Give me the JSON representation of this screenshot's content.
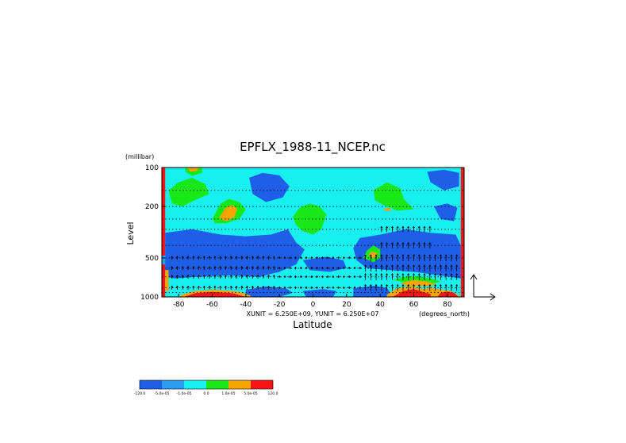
{
  "chart_data": {
    "type": "heatmap",
    "title": "EPFLX_1988-11_NCEP.nc",
    "xlabel": "Latitude",
    "ylabel": "Level",
    "y_units": "(millibar)",
    "x_units": "(degrees_north)",
    "unit_note": "XUNIT = 6.250E+09, YUNIT = 6.250E+07",
    "xlim": [
      -90,
      90
    ],
    "ylim": [
      1000,
      100
    ],
    "y_scale": "log",
    "x_ticks": [
      {
        "value": -80,
        "label": "-80"
      },
      {
        "value": -60,
        "label": "-60"
      },
      {
        "value": -40,
        "label": "-40"
      },
      {
        "value": -20,
        "label": "-20"
      },
      {
        "value": 0,
        "label": "0"
      },
      {
        "value": 20,
        "label": "20"
      },
      {
        "value": 40,
        "label": "40"
      },
      {
        "value": 60,
        "label": "60"
      },
      {
        "value": 80,
        "label": "80"
      }
    ],
    "y_ticks": [
      {
        "value": 100,
        "label": "100"
      },
      {
        "value": 200,
        "label": "200"
      },
      {
        "value": 500,
        "label": "500"
      },
      {
        "value": 1000,
        "label": "1000"
      }
    ],
    "levels_dotted": [
      100,
      150,
      200,
      250,
      300,
      400,
      500,
      600,
      700,
      850,
      925,
      1000
    ],
    "colorbar": {
      "colors": [
        "#1f5fe8",
        "#2b9cf2",
        "#18f0f0",
        "#18e818",
        "#f8a400",
        "#f81414"
      ],
      "labels": [
        "-120.0",
        "-5.0e-05",
        "-1.0e-05",
        "0.0",
        "1.0e-05",
        "5.0e-05",
        "120.0"
      ]
    },
    "regions": [
      {
        "name": "left-edge-red",
        "color": "#f81414",
        "pts": [
          [
            -90,
            100
          ],
          [
            -88,
            100
          ],
          [
            -88,
            1000
          ],
          [
            -90,
            1000
          ]
        ]
      },
      {
        "name": "right-edge-red",
        "color": "#f81414",
        "pts": [
          [
            88,
            100
          ],
          [
            90,
            100
          ],
          [
            90,
            1000
          ],
          [
            88,
            1000
          ]
        ]
      },
      {
        "name": "lower-tropo-blue-south",
        "color": "#1f5fe8",
        "pts": [
          [
            -88,
            320
          ],
          [
            -72,
            300
          ],
          [
            -55,
            330
          ],
          [
            -40,
            340
          ],
          [
            -25,
            330
          ],
          [
            -15,
            300
          ],
          [
            -10,
            380
          ],
          [
            -5,
            430
          ],
          [
            -10,
            560
          ],
          [
            -20,
            640
          ],
          [
            -32,
            700
          ],
          [
            -50,
            680
          ],
          [
            -70,
            700
          ],
          [
            -82,
            720
          ],
          [
            -88,
            700
          ]
        ]
      },
      {
        "name": "lower-tropo-blue-north",
        "color": "#1f5fe8",
        "pts": [
          [
            28,
            350
          ],
          [
            40,
            330
          ],
          [
            55,
            300
          ],
          [
            70,
            320
          ],
          [
            85,
            330
          ],
          [
            88,
            400
          ],
          [
            88,
            720
          ],
          [
            75,
            680
          ],
          [
            60,
            640
          ],
          [
            45,
            620
          ],
          [
            32,
            600
          ],
          [
            26,
            520
          ],
          [
            24,
            420
          ]
        ]
      },
      {
        "name": "lower-tropo-blue-middle",
        "color": "#1f5fe8",
        "pts": [
          [
            -6,
            520
          ],
          [
            8,
            490
          ],
          [
            18,
            520
          ],
          [
            20,
            600
          ],
          [
            10,
            640
          ],
          [
            -2,
            620
          ]
        ]
      },
      {
        "name": "upper-blue-south",
        "color": "#1f5fe8",
        "pts": [
          [
            -38,
            120
          ],
          [
            -30,
            110
          ],
          [
            -20,
            115
          ],
          [
            -14,
            140
          ],
          [
            -18,
            170
          ],
          [
            -28,
            185
          ],
          [
            -36,
            160
          ]
        ]
      },
      {
        "name": "upper-blue-north-east",
        "color": "#1f5fe8",
        "pts": [
          [
            68,
            108
          ],
          [
            78,
            104
          ],
          [
            87,
            110
          ],
          [
            87,
            140
          ],
          [
            78,
            150
          ],
          [
            70,
            130
          ]
        ]
      },
      {
        "name": "upper-blue-right",
        "color": "#1f5fe8",
        "pts": [
          [
            72,
            200
          ],
          [
            80,
            190
          ],
          [
            86,
            205
          ],
          [
            84,
            260
          ],
          [
            76,
            250
          ]
        ]
      },
      {
        "name": "surface-blue-south",
        "color": "#1f5fe8",
        "pts": [
          [
            -40,
            880
          ],
          [
            -28,
            830
          ],
          [
            -16,
            860
          ],
          [
            -12,
            930
          ],
          [
            -20,
            1000
          ],
          [
            -40,
            1000
          ]
        ]
      },
      {
        "name": "surface-blue-equator",
        "color": "#1f5fe8",
        "pts": [
          [
            -6,
            900
          ],
          [
            6,
            870
          ],
          [
            14,
            900
          ],
          [
            12,
            1000
          ],
          [
            -4,
            1000
          ]
        ]
      },
      {
        "name": "surface-blue-north",
        "color": "#1f5fe8",
        "pts": [
          [
            24,
            860
          ],
          [
            36,
            820
          ],
          [
            44,
            850
          ],
          [
            46,
            930
          ],
          [
            44,
            1000
          ],
          [
            24,
            1000
          ]
        ]
      },
      {
        "name": "green-upper-south",
        "color": "#18e818",
        "pts": [
          [
            -86,
            150
          ],
          [
            -80,
            130
          ],
          [
            -72,
            120
          ],
          [
            -64,
            135
          ],
          [
            -62,
            160
          ],
          [
            -70,
            178
          ],
          [
            -78,
            200
          ],
          [
            -84,
            190
          ]
        ]
      },
      {
        "name": "green-mid-south",
        "color": "#18e818",
        "pts": [
          [
            -60,
            250
          ],
          [
            -55,
            190
          ],
          [
            -50,
            175
          ],
          [
            -44,
            185
          ],
          [
            -40,
            210
          ],
          [
            -44,
            250
          ],
          [
            -52,
            270
          ],
          [
            -58,
            270
          ]
        ]
      },
      {
        "name": "green-equator",
        "color": "#18e818",
        "pts": [
          [
            -12,
            240
          ],
          [
            -8,
            205
          ],
          [
            -2,
            190
          ],
          [
            4,
            200
          ],
          [
            8,
            230
          ],
          [
            5,
            300
          ],
          [
            0,
            330
          ],
          [
            -6,
            310
          ],
          [
            -10,
            280
          ]
        ]
      },
      {
        "name": "green-north-upper",
        "color": "#18e818",
        "pts": [
          [
            36,
            150
          ],
          [
            44,
            130
          ],
          [
            52,
            145
          ],
          [
            54,
            175
          ],
          [
            60,
            210
          ],
          [
            50,
            215
          ],
          [
            42,
            195
          ],
          [
            37,
            180
          ]
        ]
      },
      {
        "name": "green-north-mid",
        "color": "#18e818",
        "pts": [
          [
            30,
            500
          ],
          [
            32,
            440
          ],
          [
            36,
            400
          ],
          [
            40,
            430
          ],
          [
            40,
            500
          ],
          [
            36,
            540
          ]
        ]
      },
      {
        "name": "green-north-lower",
        "color": "#18e818",
        "pts": [
          [
            48,
            740
          ],
          [
            54,
            700
          ],
          [
            62,
            690
          ],
          [
            70,
            720
          ],
          [
            76,
            760
          ],
          [
            70,
            800
          ],
          [
            58,
            790
          ]
        ]
      },
      {
        "name": "green-top-center",
        "color": "#18e818",
        "pts": [
          [
            -76,
            100
          ],
          [
            -66,
            100
          ],
          [
            -66,
            110
          ],
          [
            -72,
            116
          ],
          [
            -76,
            108
          ]
        ]
      },
      {
        "name": "orange-upper-south",
        "color": "#f8a400",
        "pts": [
          [
            -56,
            245
          ],
          [
            -52,
            205
          ],
          [
            -48,
            195
          ],
          [
            -45,
            210
          ],
          [
            -47,
            245
          ],
          [
            -52,
            260
          ]
        ]
      },
      {
        "name": "orange-top-south",
        "color": "#f8a400",
        "pts": [
          [
            -75,
            100
          ],
          [
            -68,
            100
          ],
          [
            -69,
            106
          ],
          [
            -73,
            108
          ]
        ]
      },
      {
        "name": "orange-north-mid",
        "color": "#f8a400",
        "pts": [
          [
            33,
            470
          ],
          [
            35,
            445
          ],
          [
            38,
            455
          ],
          [
            38,
            490
          ],
          [
            35,
            505
          ]
        ]
      },
      {
        "name": "orange-north-upper",
        "color": "#f8a400",
        "pts": [
          [
            42,
            210
          ],
          [
            45,
            205
          ],
          [
            47,
            212
          ],
          [
            44,
            218
          ]
        ]
      },
      {
        "name": "orange-north-lower",
        "color": "#f8a400",
        "pts": [
          [
            52,
            780
          ],
          [
            60,
            740
          ],
          [
            68,
            760
          ],
          [
            74,
            800
          ],
          [
            66,
            830
          ],
          [
            56,
            820
          ]
        ]
      },
      {
        "name": "orange-surface-south",
        "color": "#f8a400",
        "pts": [
          [
            -78,
            960
          ],
          [
            -70,
            900
          ],
          [
            -58,
            880
          ],
          [
            -44,
            910
          ],
          [
            -38,
            970
          ],
          [
            -36,
            1000
          ],
          [
            -80,
            1000
          ]
        ]
      },
      {
        "name": "orange-surface-north",
        "color": "#f8a400",
        "pts": [
          [
            44,
            960
          ],
          [
            50,
            860
          ],
          [
            58,
            820
          ],
          [
            66,
            870
          ],
          [
            70,
            840
          ],
          [
            76,
            880
          ],
          [
            82,
            900
          ],
          [
            86,
            960
          ],
          [
            88,
            1000
          ],
          [
            44,
            1000
          ]
        ]
      },
      {
        "name": "red-surface-south",
        "color": "#f81414",
        "pts": [
          [
            -76,
            990
          ],
          [
            -70,
            935
          ],
          [
            -60,
            915
          ],
          [
            -48,
            935
          ],
          [
            -42,
            985
          ],
          [
            -40,
            1000
          ],
          [
            -76,
            1000
          ]
        ]
      },
      {
        "name": "red-surface-north",
        "color": "#f81414",
        "pts": [
          [
            48,
            990
          ],
          [
            54,
            900
          ],
          [
            60,
            870
          ],
          [
            66,
            920
          ],
          [
            70,
            950
          ],
          [
            70,
            1000
          ],
          [
            48,
            1000
          ]
        ]
      },
      {
        "name": "red-surface-far-north",
        "color": "#f81414",
        "pts": [
          [
            74,
            1000
          ],
          [
            76,
            930
          ],
          [
            80,
            910
          ],
          [
            84,
            930
          ],
          [
            86,
            980
          ],
          [
            86,
            1000
          ]
        ]
      },
      {
        "name": "left-cyan-notch",
        "color": "#2b9cf2",
        "pts": [
          [
            -90,
            480
          ],
          [
            -88,
            480
          ],
          [
            -88,
            560
          ],
          [
            -90,
            560
          ]
        ]
      },
      {
        "name": "left-cyan-bottom",
        "color": "#f8a400",
        "pts": [
          [
            -88,
            620
          ],
          [
            -86,
            620
          ],
          [
            -86,
            900
          ],
          [
            -88,
            900
          ]
        ]
      }
    ],
    "arrows": {
      "note": "EP flux vectors, shown vertically in the lower troposphere",
      "reference_vector": "axes-arrows at lower right"
    }
  }
}
